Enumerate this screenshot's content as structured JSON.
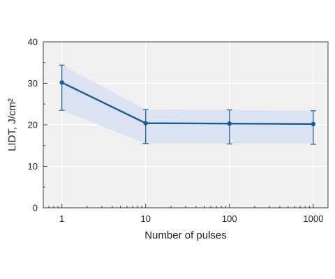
{
  "chart_data": {
    "type": "line",
    "xlabel": "Number of pulses",
    "ylabel": "LIDT, J/cm²",
    "xscale": "log",
    "xlim": [
      0.6,
      1500
    ],
    "ylim": [
      0,
      40
    ],
    "grid": true,
    "x_tick_labels": [
      "1",
      "10",
      "100",
      "1000"
    ],
    "y_tick_labels": [
      "0",
      "10",
      "20",
      "30",
      "40"
    ],
    "series": [
      {
        "x": [
          1,
          10,
          100,
          1000
        ],
        "y": [
          30.2,
          20.4,
          20.3,
          20.2
        ],
        "error_low": [
          23.5,
          15.5,
          15.4,
          15.3
        ],
        "error_high": [
          34.4,
          23.7,
          23.6,
          23.4
        ],
        "band_low": [
          23.5,
          15.5,
          15.5,
          15.5
        ],
        "band_high": [
          34.4,
          23.7,
          23.6,
          23.4
        ]
      }
    ],
    "colors": {
      "plot_background": "#f0f0f0",
      "band": "#dbe3f2",
      "line": "#1d5a96",
      "grid": "#ffffff"
    }
  }
}
